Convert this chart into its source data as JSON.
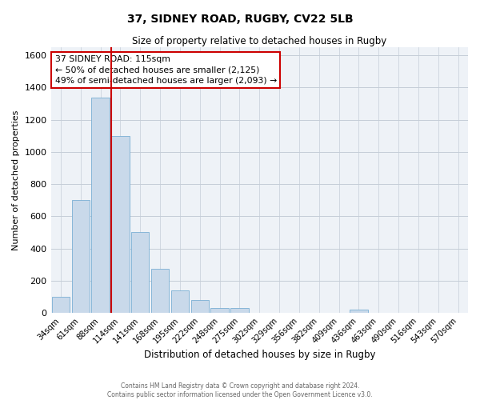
{
  "title": "37, SIDNEY ROAD, RUGBY, CV22 5LB",
  "subtitle": "Size of property relative to detached houses in Rugby",
  "xlabel": "Distribution of detached houses by size in Rugby",
  "ylabel": "Number of detached properties",
  "bar_color": "#c9d9ea",
  "bar_edge_color": "#7aafd4",
  "categories": [
    "34sqm",
    "61sqm",
    "88sqm",
    "114sqm",
    "141sqm",
    "168sqm",
    "195sqm",
    "222sqm",
    "248sqm",
    "275sqm",
    "302sqm",
    "329sqm",
    "356sqm",
    "382sqm",
    "409sqm",
    "436sqm",
    "463sqm",
    "490sqm",
    "516sqm",
    "543sqm",
    "570sqm"
  ],
  "values": [
    100,
    700,
    1340,
    1100,
    500,
    275,
    140,
    80,
    30,
    30,
    0,
    0,
    0,
    0,
    0,
    20,
    0,
    0,
    0,
    0,
    0
  ],
  "property_line_color": "#cc0000",
  "property_line_bin": 3,
  "annotation_text": "37 SIDNEY ROAD: 115sqm\n← 50% of detached houses are smaller (2,125)\n49% of semi-detached houses are larger (2,093) →",
  "annotation_box_color": "#ffffff",
  "annotation_box_edge_color": "#cc0000",
  "ylim": [
    0,
    1650
  ],
  "yticks": [
    0,
    200,
    400,
    600,
    800,
    1000,
    1200,
    1400,
    1600
  ],
  "footer_line1": "Contains HM Land Registry data © Crown copyright and database right 2024.",
  "footer_line2": "Contains public sector information licensed under the Open Government Licence v3.0.",
  "background_color": "#eef2f7",
  "grid_color": "#c5cdd8"
}
